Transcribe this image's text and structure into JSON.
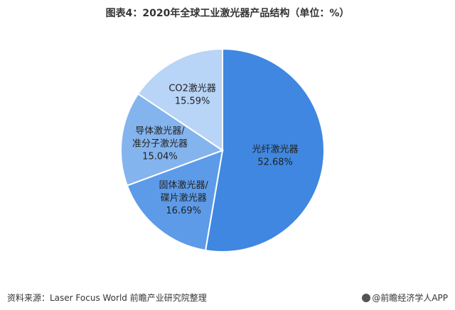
{
  "chart_data": {
    "type": "pie",
    "title": "图表4：2020年全球工业激光器产品结构（单位：%）",
    "categories": [
      "光纤激光器",
      "固体激光器/碟片激光器",
      "导体激光器/准分子激光器",
      "CO2激光器"
    ],
    "values": [
      52.68,
      16.69,
      15.04,
      15.59
    ],
    "order": "clockwise-from-top",
    "slices": [
      {
        "label_lines": [
          "光纤激光器"
        ],
        "percent": "52.68%",
        "value": 52.68,
        "color": "#3f87e0"
      },
      {
        "label_lines": [
          "固体激光器/",
          "碟片激光器"
        ],
        "percent": "16.69%",
        "value": 16.69,
        "color": "#5d9be8"
      },
      {
        "label_lines": [
          "导体激光器/",
          "准分子激光器"
        ],
        "percent": "15.04%",
        "value": 15.04,
        "color": "#84b4ee"
      },
      {
        "label_lines": [
          "CO2激光器"
        ],
        "percent": "15.59%",
        "value": 15.59,
        "color": "#b8d4f7"
      }
    ]
  },
  "footer": {
    "source": "资料来源：Laser Focus World 前瞻产业研究院整理",
    "brand": "@前瞻经济学人APP"
  }
}
